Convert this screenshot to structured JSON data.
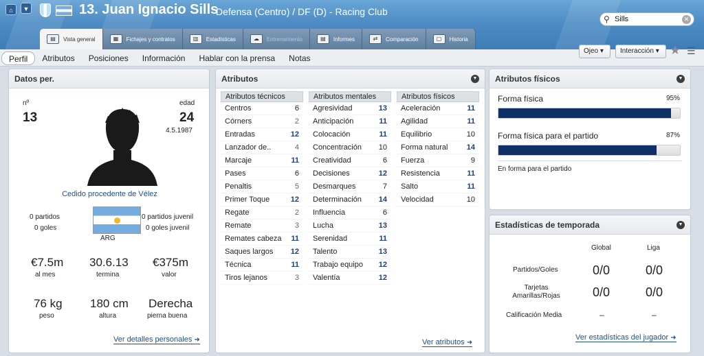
{
  "header": {
    "title": "13. Juan Ignacio Sills",
    "subtitle": "Defensa (Centro) / DF (D) - Racing Club",
    "search_value": "Sills"
  },
  "tabs": [
    {
      "label": "Vista general",
      "icon": "overview-icon"
    },
    {
      "label": "Fichajes y contratos",
      "icon": "contract-icon"
    },
    {
      "label": "Estadísticas",
      "icon": "stats-icon"
    },
    {
      "label": "Entrenamiento",
      "icon": "cloud-icon"
    },
    {
      "label": "Informes",
      "icon": "report-icon"
    },
    {
      "label": "Comparación",
      "icon": "compare-icon"
    },
    {
      "label": "Historia",
      "icon": "history-icon"
    }
  ],
  "subnav": {
    "items": [
      "Perfil",
      "Atributos",
      "Posiciones",
      "Información",
      "Hablar con la prensa",
      "Notas"
    ],
    "ojeo": "Ojeo",
    "interaccion": "Interacción"
  },
  "personal": {
    "title": "Datos per.",
    "number_label": "nº",
    "number": "13",
    "age_label": "edad",
    "age": "24",
    "birth": "4.5.1987",
    "loan": "Cedido procedente de Vélez",
    "partidos": "0 partidos",
    "goles": "0 goles",
    "partidos_juvenil": "0 partidos juvenil",
    "goles_juvenil": "0 goles juvenil",
    "nation": "ARG",
    "wage": "€7.5m",
    "wage_label": "al mes",
    "contract": "30.6.13",
    "contract_label": "termina",
    "value": "€375m",
    "value_label": "valor",
    "weight": "76 kg",
    "weight_label": "peso",
    "height": "180 cm",
    "height_label": "altura",
    "foot": "Derecha",
    "foot_label": "pierna buena",
    "link": "Ver detalles personales"
  },
  "attributes": {
    "title": "Atributos",
    "technical_header": "Atributos técnicos",
    "technical": [
      {
        "name": "Centros",
        "value": "6"
      },
      {
        "name": "Córners",
        "value": "2"
      },
      {
        "name": "Entradas",
        "value": "12"
      },
      {
        "name": "Lanzador de..",
        "value": "4"
      },
      {
        "name": "Marcaje",
        "value": "11"
      },
      {
        "name": "Pases",
        "value": "6"
      },
      {
        "name": "Penaltis",
        "value": "5"
      },
      {
        "name": "Primer Toque",
        "value": "12"
      },
      {
        "name": "Regate",
        "value": "2"
      },
      {
        "name": "Remate",
        "value": "3"
      },
      {
        "name": "Remates cabeza",
        "value": "11"
      },
      {
        "name": "Saques largos",
        "value": "12"
      },
      {
        "name": "Técnica",
        "value": "11"
      },
      {
        "name": "Tiros lejanos",
        "value": "3"
      }
    ],
    "mental_header": "Atributos mentales",
    "mental": [
      {
        "name": "Agresividad",
        "value": "13"
      },
      {
        "name": "Anticipación",
        "value": "11"
      },
      {
        "name": "Colocación",
        "value": "11"
      },
      {
        "name": "Concentración",
        "value": "10"
      },
      {
        "name": "Creatividad",
        "value": "6"
      },
      {
        "name": "Decisiones",
        "value": "12"
      },
      {
        "name": "Desmarques",
        "value": "7"
      },
      {
        "name": "Determinación",
        "value": "14"
      },
      {
        "name": "Influencia",
        "value": "6"
      },
      {
        "name": "Lucha",
        "value": "13"
      },
      {
        "name": "Serenidad",
        "value": "11"
      },
      {
        "name": "Talento",
        "value": "13"
      },
      {
        "name": "Trabajo equipo",
        "value": "12"
      },
      {
        "name": "Valentía",
        "value": "12"
      }
    ],
    "physical_header": "Atributos físicos",
    "physical": [
      {
        "name": "Aceleración",
        "value": "11"
      },
      {
        "name": "Agilidad",
        "value": "11"
      },
      {
        "name": "Equilibrio",
        "value": "10"
      },
      {
        "name": "Forma natural",
        "value": "14"
      },
      {
        "name": "Fuerza",
        "value": "9"
      },
      {
        "name": "Resistencia",
        "value": "11"
      },
      {
        "name": "Salto",
        "value": "11"
      },
      {
        "name": "Velocidad",
        "value": "10"
      }
    ],
    "link": "Ver atributos"
  },
  "fitness": {
    "title": "Atributos físicos",
    "forma_label": "Forma física",
    "forma_pct": "95%",
    "forma_value": 95,
    "partido_label": "Forma física para el partido",
    "partido_pct": "87%",
    "partido_value": 87,
    "status": "En forma para el partido"
  },
  "season": {
    "title": "Estadísticas de temporada",
    "col_global": "Global",
    "col_liga": "Liga",
    "rows": [
      {
        "label": "Partidos/Goles",
        "global": "0/0",
        "liga": "0/0"
      },
      {
        "label": "Tarjetas Amarillas/Rojas",
        "global": "0/0",
        "liga": "0/0"
      },
      {
        "label": "Calificación Media",
        "global": "–",
        "liga": "–"
      }
    ],
    "link": "Ver estadísticas del jugador"
  },
  "colors": {
    "header_blue": "#4d8cc4",
    "bar_fill": "#0f3066",
    "value_blue": "#1e3f7a"
  }
}
